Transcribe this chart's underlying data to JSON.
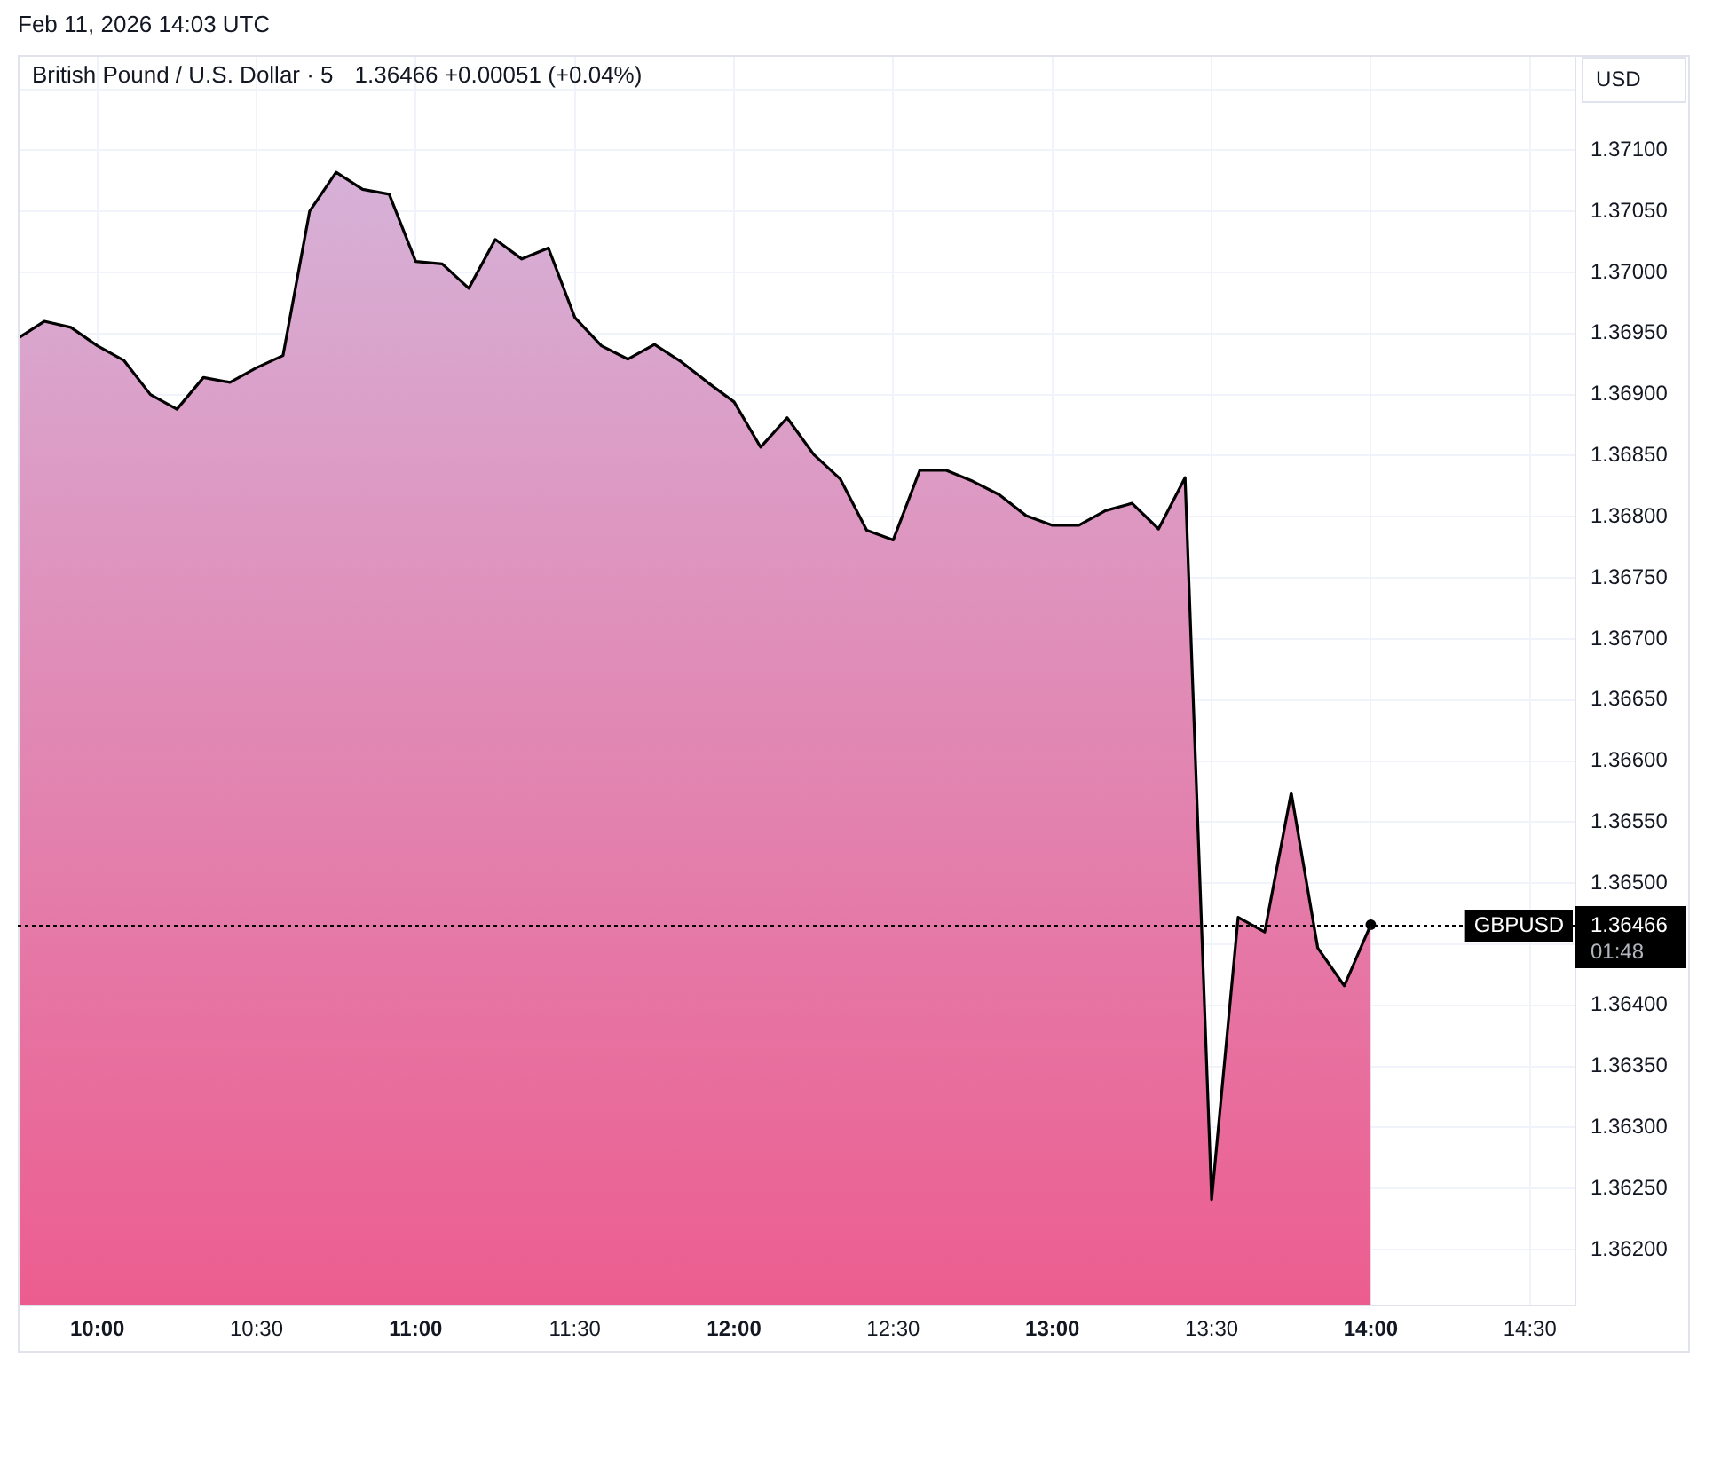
{
  "chart_data": {
    "type": "area",
    "title": "British Pound / U.S. Dollar · 5",
    "subtitle": "1.36466 +0.00051 (+0.04%)",
    "ylabel": "USD",
    "annotations": [
      "Feb 11, 2026 14:03 UTC",
      "1.36466",
      "01:48"
    ],
    "x": [
      9.75,
      9.8333,
      9.9167,
      10,
      10.0833,
      10.1667,
      10.25,
      10.3333,
      10.4167,
      10.5,
      10.5833,
      10.6667,
      10.75,
      10.8333,
      10.9167,
      11,
      11.0833,
      11.1667,
      11.25,
      11.3333,
      11.4167,
      11.5,
      11.5833,
      11.6667,
      11.75,
      11.8333,
      11.9167,
      12,
      12.0833,
      12.1667,
      12.25,
      12.3333,
      12.4167,
      12.5,
      12.5833,
      12.6667,
      12.75,
      12.8333,
      12.9167,
      13,
      13.0833,
      13.1667,
      13.25,
      13.3333,
      13.4167,
      13.5,
      13.5833,
      13.6667,
      13.75,
      13.8333,
      13.9167,
      14
    ],
    "series": [
      {
        "color": "#d98fbe",
        "values": [
          1.36946,
          1.3696,
          1.36955,
          1.3694,
          1.36928,
          1.369,
          1.36888,
          1.36914,
          1.3691,
          1.36922,
          1.36932,
          1.3705,
          1.37082,
          1.37068,
          1.37064,
          1.37009,
          1.37007,
          1.36987,
          1.37027,
          1.37011,
          1.3702,
          1.36963,
          1.3694,
          1.36929,
          1.36941,
          1.36927,
          1.3691,
          1.36894,
          1.36857,
          1.36881,
          1.36851,
          1.36831,
          1.36789,
          1.36781,
          1.36838,
          1.36838,
          1.36829,
          1.36818,
          1.36801,
          1.36793,
          1.36793,
          1.36805,
          1.36811,
          1.3679,
          1.36832,
          1.36241,
          1.36472,
          1.3646,
          1.36574,
          1.36447,
          1.36416,
          1.36466
        ]
      },
      {
        "type": "scatter",
        "color": "#000000",
        "marker": "circle",
        "x": [
          14
        ],
        "values": [
          1.36466
        ]
      }
    ],
    "xlim": [
      9.75,
      14.64
    ],
    "xticks": [
      {
        "value": 10,
        "label": "10:00"
      },
      {
        "value": 10.5,
        "label": "10:30"
      },
      {
        "value": 11,
        "label": "11:00"
      },
      {
        "value": 11.5,
        "label": "11:30"
      },
      {
        "value": 12,
        "label": "12:00"
      },
      {
        "value": 12.5,
        "label": "12:30"
      },
      {
        "value": 13,
        "label": "13:00"
      },
      {
        "value": 13.5,
        "label": "13:30"
      },
      {
        "value": 14,
        "label": "14:00"
      },
      {
        "value": 14.5,
        "label": "14:30"
      }
    ],
    "ylim": [
      1.36155,
      1.37178
    ],
    "yticks": [
      {
        "value": 1.362,
        "label": "1.36200"
      },
      {
        "value": 1.3625,
        "label": "1.36250"
      },
      {
        "value": 1.363,
        "label": "1.36300"
      },
      {
        "value": 1.3635,
        "label": "1.36350"
      },
      {
        "value": 1.364,
        "label": "1.36400"
      },
      {
        "value": 1.3645,
        "label": null
      },
      {
        "value": 1.365,
        "label": "1.36500"
      },
      {
        "value": 1.3655,
        "label": "1.36550"
      },
      {
        "value": 1.366,
        "label": "1.36600"
      },
      {
        "value": 1.3665,
        "label": "1.36650"
      },
      {
        "value": 1.367,
        "label": "1.36700"
      },
      {
        "value": 1.3675,
        "label": "1.36750"
      },
      {
        "value": 1.368,
        "label": "1.36800"
      },
      {
        "value": 1.3685,
        "label": "1.36850"
      },
      {
        "value": 1.369,
        "label": "1.36900"
      },
      {
        "value": 1.3695,
        "label": "1.36950"
      },
      {
        "value": 1.37,
        "label": "1.37000"
      },
      {
        "value": 1.3705,
        "label": "1.37050"
      },
      {
        "value": 1.371,
        "label": "1.37100"
      },
      {
        "value": 1.3715,
        "label": null
      }
    ],
    "ref_lines": [
      {
        "axis": "y",
        "value": 1.36466,
        "label": "GBPUSD",
        "color": "#000000",
        "line_style": "dotted"
      }
    ],
    "grid": true,
    "marker": "none"
  }
}
